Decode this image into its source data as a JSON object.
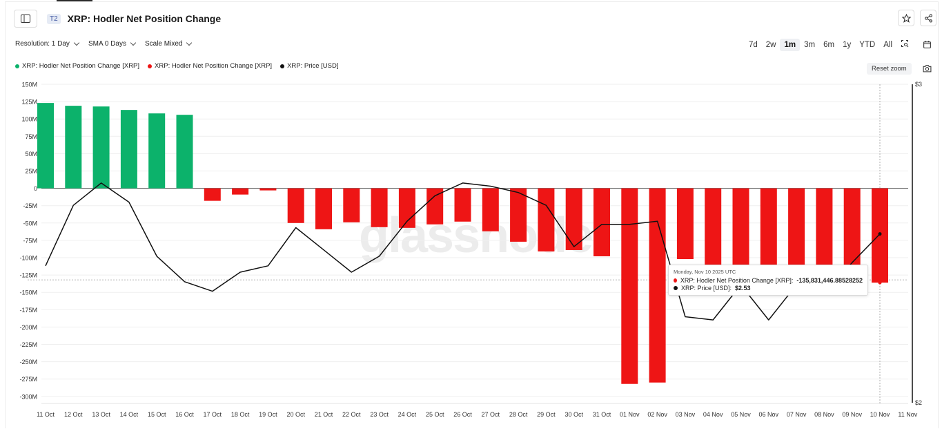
{
  "header": {
    "tier_badge": "T2",
    "title": "XRP: Hodler Net Position Change"
  },
  "controls": {
    "resolution": "Resolution: 1 Day",
    "sma": "SMA 0 Days",
    "scale": "Scale Mixed"
  },
  "ranges": [
    "7d",
    "2w",
    "1m",
    "3m",
    "6m",
    "1y",
    "YTD",
    "All"
  ],
  "active_range": "1m",
  "legend": [
    {
      "label": "XRP: Hodler Net Position Change [XRP]",
      "color": "#0cb26b"
    },
    {
      "label": "XRP: Hodler Net Position Change [XRP]",
      "color": "#ee1515"
    },
    {
      "label": "XRP: Price [USD]",
      "color": "#111111"
    }
  ],
  "reset_zoom": "Reset zoom",
  "watermark": "glassnode",
  "tooltip": {
    "date": "Monday, Nov 10 2025 UTC",
    "row1_label": "XRP: Hodler Net Position Change [XRP]:",
    "row1_value": "-135,831,446.88528252",
    "row2_label": "XRP: Price [USD]:",
    "row2_value": "$2.53"
  },
  "chart_data": {
    "type": "bar",
    "categories": [
      "11 Oct",
      "12 Oct",
      "13 Oct",
      "14 Oct",
      "15 Oct",
      "16 Oct",
      "17 Oct",
      "18 Oct",
      "19 Oct",
      "20 Oct",
      "21 Oct",
      "22 Oct",
      "23 Oct",
      "24 Oct",
      "25 Oct",
      "26 Oct",
      "27 Oct",
      "28 Oct",
      "29 Oct",
      "30 Oct",
      "31 Oct",
      "01 Nov",
      "02 Nov",
      "03 Nov",
      "04 Nov",
      "05 Nov",
      "06 Nov",
      "07 Nov",
      "08 Nov",
      "09 Nov",
      "10 Nov",
      "11 Nov"
    ],
    "series": [
      {
        "name": "XRP: Hodler Net Position Change [XRP]",
        "axis": "left",
        "unit": "M",
        "positive_color": "#0cb26b",
        "negative_color": "#ee1515",
        "values": [
          123,
          119,
          118,
          113,
          108,
          106,
          -18,
          -9,
          -3,
          -50,
          -59,
          -49,
          -56,
          -57,
          -52,
          -48,
          -62,
          -77,
          -91,
          -89,
          -98,
          -282,
          -280,
          -102,
          -110,
          -110,
          -110,
          -110,
          -110,
          -110,
          -136,
          null
        ]
      },
      {
        "name": "XRP: Price [USD]",
        "axis": "right",
        "type": "line",
        "color": "#111111",
        "values": [
          2.43,
          2.62,
          2.69,
          2.63,
          2.46,
          2.38,
          2.35,
          2.41,
          2.43,
          2.55,
          2.48,
          2.41,
          2.46,
          2.57,
          2.65,
          2.69,
          2.68,
          2.66,
          2.62,
          2.49,
          2.56,
          2.56,
          2.57,
          2.27,
          2.26,
          2.37,
          2.26,
          2.37,
          2.34,
          2.44,
          2.53,
          null
        ]
      }
    ],
    "y_left": {
      "ticks": [
        "150M",
        "125M",
        "100M",
        "75M",
        "50M",
        "25M",
        "0",
        "-25M",
        "-50M",
        "-75M",
        "-100M",
        "-125M",
        "-150M",
        "-175M",
        "-200M",
        "-225M",
        "-250M",
        "-275M",
        "-300M"
      ],
      "range": [
        -310,
        150
      ]
    },
    "y_right": {
      "ticks": [
        "$3",
        "$2"
      ],
      "range": [
        2,
        3
      ]
    },
    "highlight_index": 30,
    "crosshair_value": -132,
    "grid": true
  }
}
